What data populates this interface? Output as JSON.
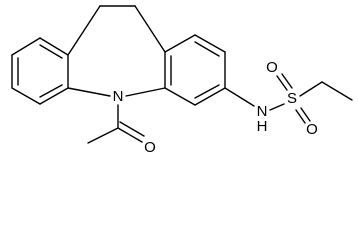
{
  "atoms": [
    "N",
    "O",
    "N",
    "H",
    "S",
    "O",
    "O"
  ]
}
